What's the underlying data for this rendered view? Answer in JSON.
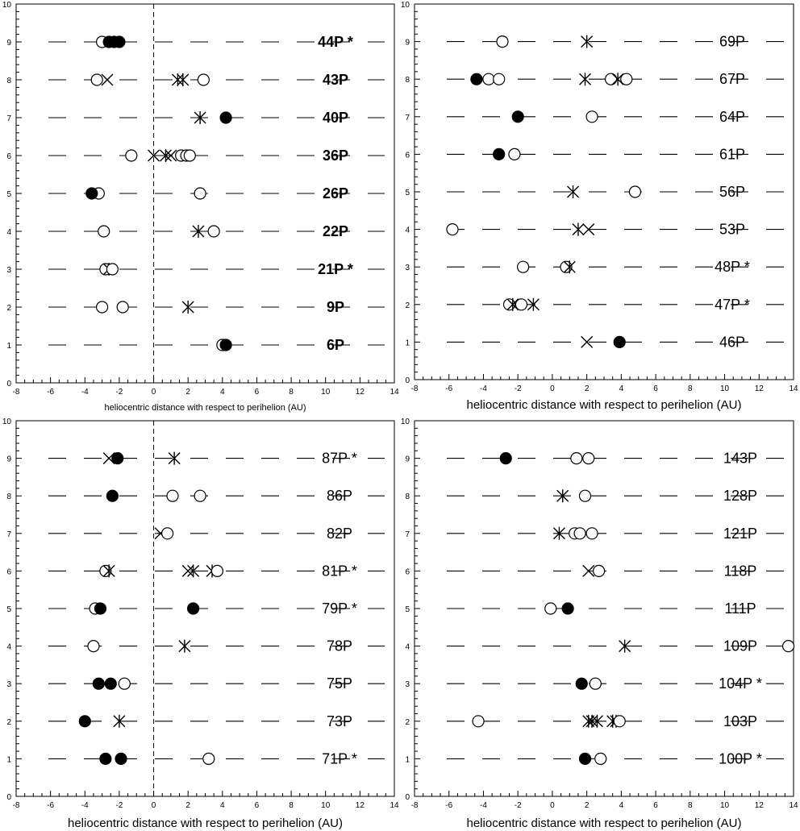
{
  "chart_data": [
    {
      "type": "scatter",
      "panel": "top-left",
      "xlabel": "heliocentric distance with respect to perihelion (AU)",
      "xlim": [
        -8,
        14
      ],
      "ylim": [
        0,
        10
      ],
      "xticks": [
        "-8",
        "-6",
        "-4",
        "-2",
        "0",
        "2",
        "4",
        "6",
        "8",
        "10",
        "12",
        "14"
      ],
      "yticks": [
        "0",
        "1",
        "2",
        "3",
        "4",
        "5",
        "6",
        "7",
        "8",
        "9",
        "10"
      ],
      "perihelion_line": true,
      "grid": "dashed horizontal lines at each comet row",
      "comets": [
        {
          "name": "44P *",
          "y": 9,
          "points": [
            {
              "x": -3.0,
              "m": "open"
            },
            {
              "x": -2.6,
              "m": "filled"
            },
            {
              "x": -2.3,
              "m": "filled"
            },
            {
              "x": -2.0,
              "m": "filled"
            }
          ]
        },
        {
          "name": "43P",
          "y": 8,
          "points": [
            {
              "x": -3.3,
              "m": "open"
            },
            {
              "x": -2.7,
              "m": "x"
            },
            {
              "x": 1.4,
              "m": "star"
            },
            {
              "x": 1.7,
              "m": "star"
            },
            {
              "x": 2.9,
              "m": "open"
            }
          ]
        },
        {
          "name": "40P",
          "y": 7,
          "points": [
            {
              "x": 2.7,
              "m": "star"
            },
            {
              "x": 4.2,
              "m": "filled"
            }
          ]
        },
        {
          "name": "36P",
          "y": 6,
          "points": [
            {
              "x": -1.3,
              "m": "open"
            },
            {
              "x": 0.0,
              "m": "x"
            },
            {
              "x": 0.7,
              "m": "star"
            },
            {
              "x": 1.0,
              "m": "x"
            },
            {
              "x": 1.6,
              "m": "open"
            },
            {
              "x": 1.9,
              "m": "open"
            },
            {
              "x": 2.1,
              "m": "open"
            }
          ]
        },
        {
          "name": "26P",
          "y": 5,
          "points": [
            {
              "x": -3.2,
              "m": "open"
            },
            {
              "x": -3.6,
              "m": "filled"
            },
            {
              "x": 2.7,
              "m": "open"
            }
          ]
        },
        {
          "name": "22P",
          "y": 4,
          "points": [
            {
              "x": -2.9,
              "m": "open"
            },
            {
              "x": 2.6,
              "m": "star"
            },
            {
              "x": 3.5,
              "m": "open"
            }
          ]
        },
        {
          "name": "21P *",
          "y": 3,
          "points": [
            {
              "x": -2.8,
              "m": "open"
            },
            {
              "x": -2.6,
              "m": "star"
            },
            {
              "x": -2.4,
              "m": "open"
            }
          ]
        },
        {
          "name": "9P",
          "y": 2,
          "points": [
            {
              "x": -3.0,
              "m": "open"
            },
            {
              "x": -1.8,
              "m": "open"
            },
            {
              "x": 2.0,
              "m": "star"
            }
          ]
        },
        {
          "name": "6P",
          "y": 1,
          "points": [
            {
              "x": 4.0,
              "m": "open"
            },
            {
              "x": 4.2,
              "m": "filled"
            }
          ]
        }
      ]
    },
    {
      "type": "scatter",
      "panel": "top-right",
      "xlabel": "heliocentric distance with respect to perihelion (AU)",
      "xlim": [
        -8,
        14
      ],
      "ylim": [
        0,
        10
      ],
      "xticks": [
        "-8",
        "-6",
        "-4",
        "-2",
        "0",
        "2",
        "4",
        "6",
        "8",
        "10",
        "12",
        "14"
      ],
      "yticks": [
        "0",
        "1",
        "2",
        "3",
        "4",
        "5",
        "6",
        "7",
        "8",
        "9",
        "10"
      ],
      "perihelion_line": false,
      "grid": "dashed horizontal lines at each comet row",
      "comets": [
        {
          "name": "69P",
          "y": 9,
          "points": [
            {
              "x": -2.9,
              "m": "open"
            },
            {
              "x": 2.0,
              "m": "star"
            }
          ]
        },
        {
          "name": "67P",
          "y": 8,
          "points": [
            {
              "x": -4.4,
              "m": "filled"
            },
            {
              "x": -3.7,
              "m": "open"
            },
            {
              "x": -3.1,
              "m": "open"
            },
            {
              "x": 1.9,
              "m": "star"
            },
            {
              "x": 3.4,
              "m": "open"
            },
            {
              "x": 3.8,
              "m": "star"
            },
            {
              "x": 4.3,
              "m": "open"
            }
          ]
        },
        {
          "name": "64P",
          "y": 7,
          "points": [
            {
              "x": -2.0,
              "m": "filled"
            },
            {
              "x": 2.3,
              "m": "open"
            }
          ]
        },
        {
          "name": "61P",
          "y": 6,
          "points": [
            {
              "x": -3.1,
              "m": "filled"
            },
            {
              "x": -2.2,
              "m": "open"
            }
          ]
        },
        {
          "name": "56P",
          "y": 5,
          "points": [
            {
              "x": 1.2,
              "m": "star"
            },
            {
              "x": 4.8,
              "m": "open"
            }
          ]
        },
        {
          "name": "53P",
          "y": 4,
          "points": [
            {
              "x": -5.8,
              "m": "open"
            },
            {
              "x": 1.5,
              "m": "star"
            },
            {
              "x": 2.1,
              "m": "x"
            }
          ]
        },
        {
          "name": "48P *",
          "y": 3,
          "points": [
            {
              "x": -1.7,
              "m": "open"
            },
            {
              "x": 0.8,
              "m": "open"
            },
            {
              "x": 1.0,
              "m": "star"
            }
          ]
        },
        {
          "name": "47P *",
          "y": 2,
          "points": [
            {
              "x": -2.5,
              "m": "open"
            },
            {
              "x": -2.3,
              "m": "star"
            },
            {
              "x": -1.8,
              "m": "open"
            },
            {
              "x": -1.1,
              "m": "star"
            }
          ]
        },
        {
          "name": "46P",
          "y": 1,
          "points": [
            {
              "x": 2.0,
              "m": "x"
            },
            {
              "x": 3.9,
              "m": "filled"
            }
          ]
        }
      ]
    },
    {
      "type": "scatter",
      "panel": "bottom-left",
      "xlabel": "heliocentric distance with respect to perihelion (AU)",
      "xlim": [
        -8,
        14
      ],
      "ylim": [
        0,
        10
      ],
      "xticks": [
        "-8",
        "-6",
        "-4",
        "-2",
        "0",
        "2",
        "4",
        "6",
        "8",
        "10",
        "12",
        "14"
      ],
      "yticks": [
        "0",
        "1",
        "2",
        "3",
        "4",
        "5",
        "6",
        "7",
        "8",
        "9",
        "10"
      ],
      "perihelion_line": true,
      "grid": "dashed horizontal lines at each comet row",
      "comets": [
        {
          "name": "87P *",
          "y": 9,
          "points": [
            {
              "x": -2.6,
              "m": "x"
            },
            {
              "x": -2.1,
              "m": "filled"
            },
            {
              "x": 1.2,
              "m": "star"
            }
          ]
        },
        {
          "name": "86P",
          "y": 8,
          "points": [
            {
              "x": -2.4,
              "m": "filled"
            },
            {
              "x": 1.1,
              "m": "open"
            },
            {
              "x": 2.7,
              "m": "open"
            }
          ]
        },
        {
          "name": "82P",
          "y": 7,
          "points": [
            {
              "x": 0.4,
              "m": "x"
            },
            {
              "x": 0.8,
              "m": "open"
            }
          ]
        },
        {
          "name": "81P *",
          "y": 6,
          "points": [
            {
              "x": -2.8,
              "m": "open"
            },
            {
              "x": -2.6,
              "m": "star"
            },
            {
              "x": 2.0,
              "m": "x"
            },
            {
              "x": 2.3,
              "m": "star"
            },
            {
              "x": 3.4,
              "m": "star"
            },
            {
              "x": 3.7,
              "m": "open"
            }
          ]
        },
        {
          "name": "79P *",
          "y": 5,
          "points": [
            {
              "x": -3.4,
              "m": "open"
            },
            {
              "x": -3.1,
              "m": "filled"
            },
            {
              "x": 2.3,
              "m": "filled"
            }
          ]
        },
        {
          "name": "78P",
          "y": 4,
          "points": [
            {
              "x": -3.5,
              "m": "open"
            },
            {
              "x": 1.8,
              "m": "star"
            }
          ]
        },
        {
          "name": "75P",
          "y": 3,
          "points": [
            {
              "x": -3.2,
              "m": "filled"
            },
            {
              "x": -2.5,
              "m": "filled"
            },
            {
              "x": -1.7,
              "m": "open"
            }
          ]
        },
        {
          "name": "73P",
          "y": 2,
          "points": [
            {
              "x": -4.0,
              "m": "filled"
            },
            {
              "x": -2.0,
              "m": "star"
            }
          ]
        },
        {
          "name": "71P *",
          "y": 1,
          "points": [
            {
              "x": -2.8,
              "m": "filled"
            },
            {
              "x": -1.9,
              "m": "filled"
            },
            {
              "x": 3.2,
              "m": "open"
            }
          ]
        }
      ]
    },
    {
      "type": "scatter",
      "panel": "bottom-right",
      "xlabel": "heliocentric distance with respect to perihelion (AU)",
      "xlim": [
        -8,
        14
      ],
      "ylim": [
        0,
        10
      ],
      "xticks": [
        "-8",
        "-6",
        "-4",
        "-2",
        "0",
        "2",
        "4",
        "6",
        "8",
        "10",
        "12",
        "14"
      ],
      "yticks": [
        "0",
        "1",
        "2",
        "3",
        "4",
        "5",
        "6",
        "7",
        "8",
        "9",
        "10"
      ],
      "perihelion_line": false,
      "grid": "dashed horizontal lines at each comet row",
      "comets": [
        {
          "name": "143P",
          "y": 9,
          "points": [
            {
              "x": -2.7,
              "m": "filled"
            },
            {
              "x": 1.4,
              "m": "open"
            },
            {
              "x": 2.1,
              "m": "open"
            }
          ]
        },
        {
          "name": "128P",
          "y": 8,
          "points": [
            {
              "x": 0.6,
              "m": "star"
            },
            {
              "x": 1.9,
              "m": "open"
            }
          ]
        },
        {
          "name": "121P",
          "y": 7,
          "points": [
            {
              "x": 0.4,
              "m": "star"
            },
            {
              "x": 1.3,
              "m": "open"
            },
            {
              "x": 1.6,
              "m": "open"
            },
            {
              "x": 2.3,
              "m": "open"
            }
          ]
        },
        {
          "name": "118P",
          "y": 6,
          "points": [
            {
              "x": 2.1,
              "m": "x"
            },
            {
              "x": 2.7,
              "m": "open"
            }
          ]
        },
        {
          "name": "111P",
          "y": 5,
          "points": [
            {
              "x": -0.1,
              "m": "open"
            },
            {
              "x": 0.9,
              "m": "filled"
            }
          ]
        },
        {
          "name": "109P",
          "y": 4,
          "points": [
            {
              "x": 4.2,
              "m": "star"
            },
            {
              "x": 13.7,
              "m": "open"
            }
          ]
        },
        {
          "name": "104P *",
          "y": 3,
          "points": [
            {
              "x": 1.7,
              "m": "filled"
            },
            {
              "x": 2.5,
              "m": "open"
            }
          ]
        },
        {
          "name": "103P",
          "y": 2,
          "points": [
            {
              "x": -4.3,
              "m": "open"
            },
            {
              "x": 2.1,
              "m": "star"
            },
            {
              "x": 2.3,
              "m": "star"
            },
            {
              "x": 2.6,
              "m": "star"
            },
            {
              "x": 3.5,
              "m": "star"
            },
            {
              "x": 3.7,
              "m": "star"
            },
            {
              "x": 3.9,
              "m": "open"
            }
          ]
        },
        {
          "name": "100P *",
          "y": 1,
          "points": [
            {
              "x": 1.9,
              "m": "filled"
            },
            {
              "x": 2.8,
              "m": "open"
            }
          ]
        }
      ]
    }
  ]
}
